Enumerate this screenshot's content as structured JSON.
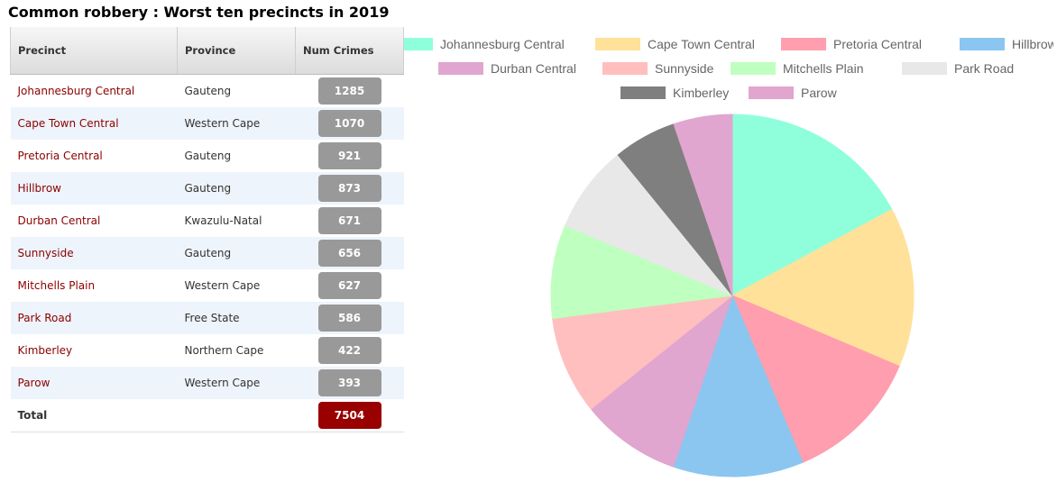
{
  "title": "Common robbery : Worst ten precincts in 2019",
  "table": {
    "headers": [
      "Precinct",
      "Province",
      "Num Crimes"
    ],
    "rows": [
      {
        "precinct": "Johannesburg Central",
        "province": "Gauteng",
        "num": "1285"
      },
      {
        "precinct": "Cape Town Central",
        "province": "Western Cape",
        "num": "1070"
      },
      {
        "precinct": "Pretoria Central",
        "province": "Gauteng",
        "num": "921"
      },
      {
        "precinct": "Hillbrow",
        "province": "Gauteng",
        "num": "873"
      },
      {
        "precinct": "Durban Central",
        "province": "Kwazulu-Natal",
        "num": "671"
      },
      {
        "precinct": "Sunnyside",
        "province": "Gauteng",
        "num": "656"
      },
      {
        "precinct": "Mitchells Plain",
        "province": "Western Cape",
        "num": "627"
      },
      {
        "precinct": "Park Road",
        "province": "Free State",
        "num": "586"
      },
      {
        "precinct": "Kimberley",
        "province": "Northern Cape",
        "num": "422"
      },
      {
        "precinct": "Parow",
        "province": "Western Cape",
        "num": "393"
      }
    ],
    "total_label": "Total",
    "total": "7504"
  },
  "chart_data": {
    "type": "pie",
    "categories": [
      "Johannesburg Central",
      "Cape Town Central",
      "Pretoria Central",
      "Hillbrow",
      "Durban Central",
      "Sunnyside",
      "Mitchells Plain",
      "Park Road",
      "Kimberley",
      "Parow"
    ],
    "values": [
      1285,
      1070,
      921,
      873,
      671,
      656,
      627,
      586,
      422,
      393
    ],
    "colors": [
      "#8fffdb",
      "#ffe19a",
      "#ff9eae",
      "#8ac6f0",
      "#e0a6cf",
      "#ffbfbf",
      "#bfffbf",
      "#e8e8e8",
      "#7f7f7f",
      "#e0a6cf"
    ],
    "legend_position": "top"
  }
}
